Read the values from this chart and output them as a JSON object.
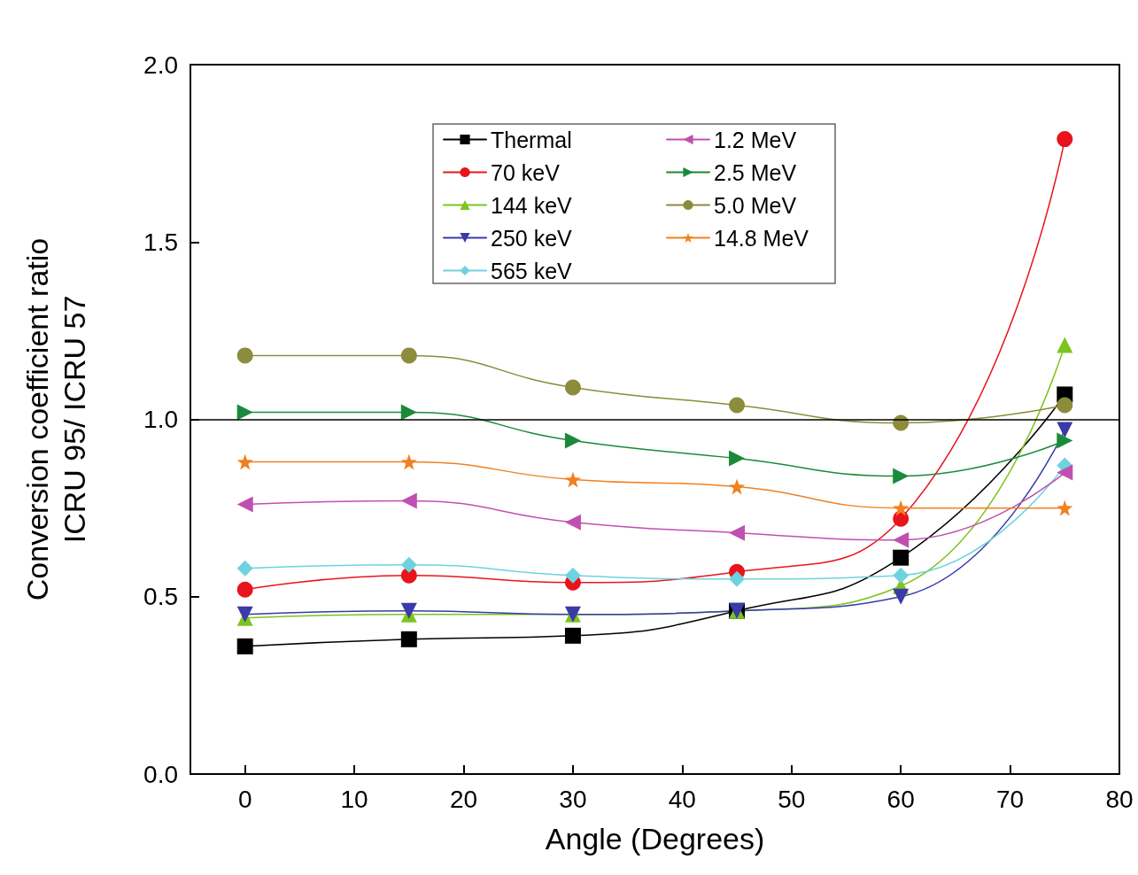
{
  "chart_data": {
    "type": "line",
    "xlabel": "Angle (Degrees)",
    "ylabel": "Conversion coefficient ratio\nICRU 95/ ICRU 57",
    "x": [
      0,
      15,
      30,
      45,
      60,
      75
    ],
    "xlim": [
      -5,
      80
    ],
    "xticks": [
      0,
      10,
      20,
      30,
      40,
      50,
      60,
      70,
      80
    ],
    "ylim": [
      0,
      2
    ],
    "yticks": [
      {
        "value": 0,
        "label": "0.0"
      },
      {
        "value": 0.5,
        "label": "0.5"
      },
      {
        "value": 1,
        "label": "1.0"
      },
      {
        "value": 1.5,
        "label": "1.5"
      },
      {
        "value": 2,
        "label": "2.0"
      }
    ],
    "grid": false,
    "legend": "top",
    "line_style": "solid",
    "ref_lines": [
      {
        "axis": "y",
        "value": 1,
        "color": "#000000"
      }
    ],
    "series": [
      {
        "name": "Thermal",
        "color": "#000000",
        "marker": "square",
        "values": [
          0.36,
          0.38,
          0.39,
          0.46,
          0.61,
          1.07
        ]
      },
      {
        "name": "70 keV",
        "color": "#e8141c",
        "marker": "circle",
        "values": [
          0.52,
          0.56,
          0.54,
          0.57,
          0.72,
          1.79
        ]
      },
      {
        "name": "144 keV",
        "color": "#7dc41e",
        "marker": "triangle",
        "values": [
          0.44,
          0.45,
          0.45,
          0.46,
          0.53,
          1.21
        ]
      },
      {
        "name": "250 keV",
        "color": "#3a3aa8",
        "marker": "triangle-down",
        "values": [
          0.45,
          0.46,
          0.45,
          0.46,
          0.5,
          0.97
        ]
      },
      {
        "name": "565 keV",
        "color": "#6ed3e0",
        "marker": "diamond",
        "values": [
          0.58,
          0.59,
          0.56,
          0.55,
          0.56,
          0.87
        ]
      },
      {
        "name": "1.2 MeV",
        "color": "#c050b0",
        "marker": "triangle-left",
        "values": [
          0.76,
          0.77,
          0.71,
          0.68,
          0.66,
          0.85
        ]
      },
      {
        "name": "2.5 MeV",
        "color": "#1a8a3a",
        "marker": "triangle-right",
        "values": [
          1.02,
          1.02,
          0.94,
          0.89,
          0.84,
          0.94
        ]
      },
      {
        "name": "5.0 MeV",
        "color": "#8c8c3c",
        "marker": "circle",
        "values": [
          1.18,
          1.18,
          1.09,
          1.04,
          0.99,
          1.04
        ]
      },
      {
        "name": "14.8 MeV",
        "color": "#f08020",
        "marker": "star",
        "values": [
          0.88,
          0.88,
          0.83,
          0.81,
          0.75,
          0.75
        ]
      }
    ]
  }
}
